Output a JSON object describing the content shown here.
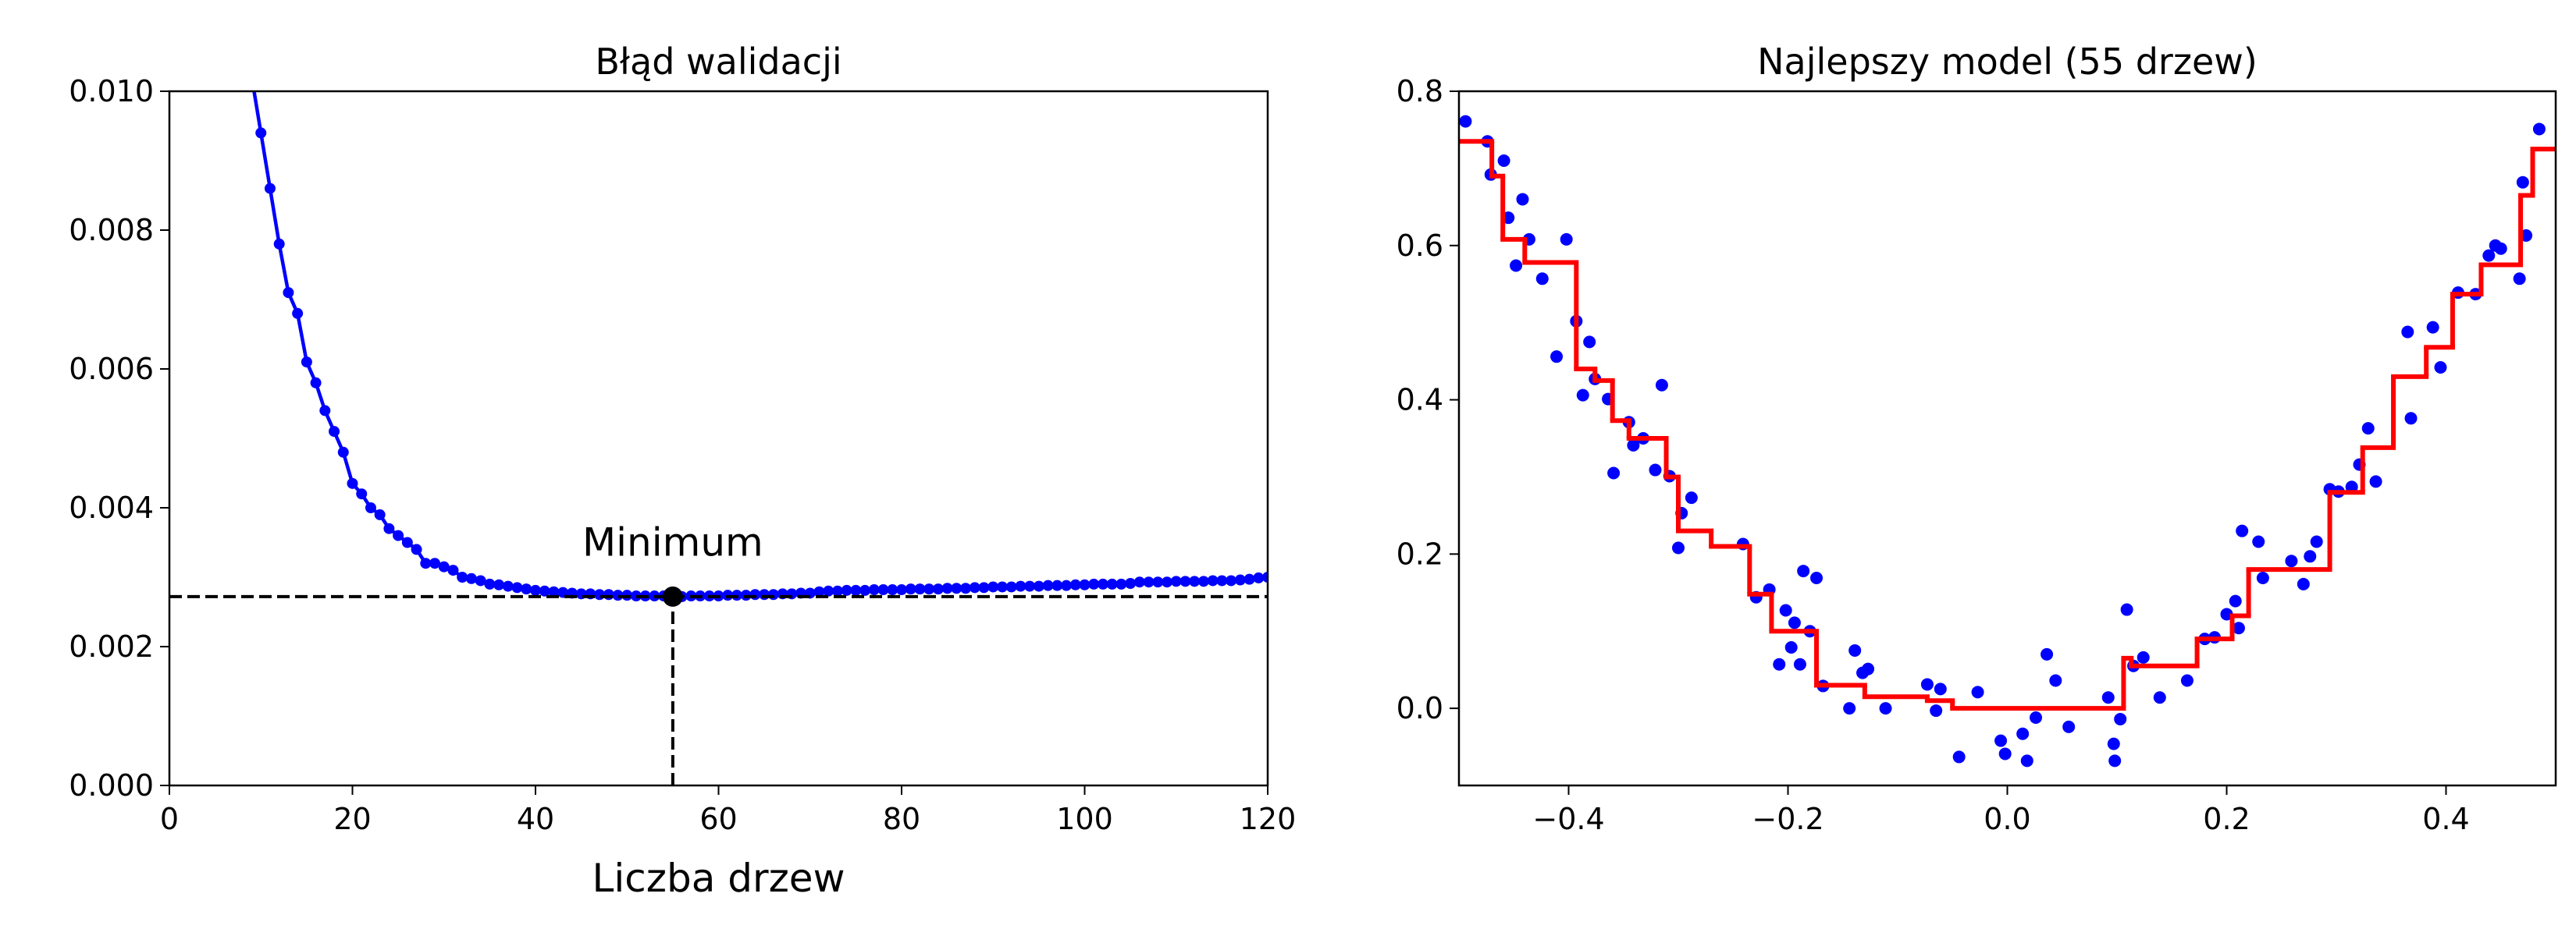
{
  "chart_data": [
    {
      "type": "line",
      "title": "Błąd walidacji",
      "x_label": "Liczba drzew",
      "color": "#0000ff",
      "x": [
        9,
        10,
        11,
        12,
        13,
        14,
        15,
        16,
        17,
        18,
        19,
        20,
        21,
        22,
        23,
        24,
        25,
        26,
        27,
        28,
        29,
        30,
        31,
        32,
        33,
        34,
        35,
        36,
        37,
        38,
        39,
        40,
        41,
        42,
        43,
        44,
        45,
        46,
        47,
        48,
        49,
        50,
        51,
        52,
        53,
        54,
        55,
        56,
        57,
        58,
        59,
        60,
        61,
        62,
        63,
        64,
        65,
        66,
        67,
        68,
        69,
        70,
        71,
        72,
        73,
        74,
        75,
        76,
        77,
        78,
        79,
        80,
        81,
        82,
        83,
        84,
        85,
        86,
        87,
        88,
        89,
        90,
        91,
        92,
        93,
        94,
        95,
        96,
        97,
        98,
        99,
        100,
        101,
        102,
        103,
        104,
        105,
        106,
        107,
        108,
        109,
        110,
        111,
        112,
        113,
        114,
        115,
        116,
        117,
        118,
        119,
        120
      ],
      "values": [
        0.0102,
        0.0094,
        0.0086,
        0.0078,
        0.0071,
        0.0068,
        0.0061,
        0.0058,
        0.0054,
        0.0051,
        0.0048,
        0.00435,
        0.0042,
        0.004,
        0.0039,
        0.0037,
        0.0036,
        0.0035,
        0.0034,
        0.0032,
        0.0032,
        0.00315,
        0.0031,
        0.003,
        0.00298,
        0.00295,
        0.0029,
        0.00289,
        0.00287,
        0.00285,
        0.00283,
        0.00281,
        0.0028,
        0.00279,
        0.00278,
        0.00277,
        0.00276,
        0.00276,
        0.00275,
        0.00275,
        0.00274,
        0.00274,
        0.00273,
        0.00273,
        0.00273,
        0.00273,
        0.00272,
        0.00272,
        0.00273,
        0.00273,
        0.00273,
        0.00273,
        0.00274,
        0.00274,
        0.00274,
        0.00275,
        0.00275,
        0.00275,
        0.00276,
        0.00276,
        0.00277,
        0.00277,
        0.00279,
        0.0028,
        0.0028,
        0.00281,
        0.00281,
        0.00281,
        0.00282,
        0.00282,
        0.00282,
        0.00282,
        0.00283,
        0.00283,
        0.00283,
        0.00283,
        0.00284,
        0.00284,
        0.00284,
        0.00285,
        0.00285,
        0.00286,
        0.00286,
        0.00286,
        0.00287,
        0.00287,
        0.00287,
        0.00288,
        0.00288,
        0.00288,
        0.00289,
        0.00289,
        0.0029,
        0.0029,
        0.0029,
        0.0029,
        0.00291,
        0.00293,
        0.00293,
        0.00293,
        0.00293,
        0.00294,
        0.00294,
        0.00294,
        0.00294,
        0.00295,
        0.00295,
        0.00295,
        0.00296,
        0.00297,
        0.00299,
        0.003
      ],
      "minimum": {
        "x": 55,
        "y": 0.00272,
        "color": "#000000"
      },
      "annotation": {
        "text": "Minimum",
        "x": 55,
        "y": 0.0035
      },
      "xlim": [
        0,
        120
      ],
      "ylim": [
        0,
        0.01
      ],
      "xticks": [
        0,
        20,
        40,
        60,
        80,
        100,
        120
      ],
      "yticks": [
        {
          "value": 0,
          "label": "0.000"
        },
        {
          "value": 0.002,
          "label": "0.002"
        },
        {
          "value": 0.004,
          "label": "0.004"
        },
        {
          "value": 0.006,
          "label": "0.006"
        },
        {
          "value": 0.008,
          "label": "0.008"
        },
        {
          "value": 0.01,
          "label": "0.010"
        }
      ],
      "grid": false
    },
    {
      "type": "scatter",
      "title": "Najlepszy model (55 drzew)",
      "points": {
        "color": "#0000ff",
        "x": [
          -0.494,
          -0.474,
          -0.471,
          -0.459,
          -0.455,
          -0.448,
          -0.442,
          -0.436,
          -0.424,
          -0.411,
          -0.402,
          -0.393,
          -0.387,
          -0.381,
          -0.376,
          -0.364,
          -0.359,
          -0.345,
          -0.341,
          -0.332,
          -0.321,
          -0.315,
          -0.308,
          -0.3,
          -0.297,
          -0.288,
          -0.241,
          -0.229,
          -0.217,
          -0.208,
          -0.202,
          -0.197,
          -0.194,
          -0.189,
          -0.186,
          -0.18,
          -0.174,
          -0.168,
          -0.144,
          -0.139,
          -0.132,
          -0.127,
          -0.111,
          -0.073,
          -0.065,
          -0.061,
          -0.044,
          -0.027,
          -0.006,
          -0.002,
          0.014,
          0.018,
          0.026,
          0.036,
          0.044,
          0.056,
          0.092,
          0.097,
          0.098,
          0.103,
          0.109,
          0.115,
          0.124,
          0.139,
          0.164,
          0.18,
          0.189,
          0.2,
          0.208,
          0.211,
          0.214,
          0.229,
          0.233,
          0.259,
          0.27,
          0.276,
          0.282,
          0.294,
          0.302,
          0.314,
          0.321,
          0.329,
          0.336,
          0.365,
          0.368,
          0.388,
          0.395,
          0.411,
          0.427,
          0.439,
          0.445,
          0.45,
          0.467,
          0.47,
          0.473,
          0.485
        ],
        "values": [
          0.761,
          0.735,
          0.692,
          0.71,
          0.636,
          0.574,
          0.66,
          0.608,
          0.557,
          0.456,
          0.608,
          0.502,
          0.406,
          0.475,
          0.427,
          0.401,
          0.305,
          0.371,
          0.341,
          0.35,
          0.309,
          0.419,
          0.301,
          0.208,
          0.253,
          0.273,
          0.213,
          0.144,
          0.154,
          0.057,
          0.127,
          0.079,
          0.111,
          0.057,
          0.178,
          0.1,
          0.169,
          0.029,
          0.0,
          0.075,
          0.046,
          0.051,
          0.0,
          0.031,
          -0.003,
          0.025,
          -0.063,
          0.021,
          -0.042,
          -0.059,
          -0.033,
          -0.068,
          -0.012,
          0.07,
          0.036,
          -0.024,
          0.014,
          -0.046,
          -0.068,
          -0.014,
          0.128,
          0.055,
          0.066,
          0.014,
          0.036,
          0.09,
          0.092,
          0.122,
          0.139,
          0.104,
          0.23,
          0.216,
          0.169,
          0.191,
          0.161,
          0.197,
          0.216,
          0.284,
          0.281,
          0.287,
          0.316,
          0.363,
          0.294,
          0.488,
          0.376,
          0.494,
          0.442,
          0.539,
          0.537,
          0.587,
          0.6,
          0.596,
          0.557,
          0.682,
          0.613,
          0.751
        ]
      },
      "step": {
        "color": "#ff0000",
        "edges": [
          -0.5,
          -0.47,
          -0.46,
          -0.44,
          -0.393,
          -0.376,
          -0.36,
          -0.345,
          -0.311,
          -0.3,
          -0.27,
          -0.235,
          -0.215,
          -0.174,
          -0.13,
          -0.073,
          -0.05,
          0.106,
          0.113,
          0.173,
          0.205,
          0.22,
          0.294,
          0.324,
          0.352,
          0.382,
          0.406,
          0.432,
          0.468,
          0.479,
          0.5
        ],
        "values": [
          0.735,
          0.69,
          0.608,
          0.578,
          0.44,
          0.425,
          0.373,
          0.35,
          0.3,
          0.23,
          0.21,
          0.148,
          0.1,
          0.03,
          0.015,
          0.01,
          0.0,
          0.065,
          0.055,
          0.09,
          0.12,
          0.18,
          0.28,
          0.338,
          0.43,
          0.468,
          0.537,
          0.575,
          0.665,
          0.725
        ]
      },
      "xlim": [
        -0.5,
        0.5
      ],
      "ylim": [
        -0.1,
        0.8
      ],
      "xticks": [
        {
          "value": -0.4,
          "label": "−0.4"
        },
        {
          "value": -0.2,
          "label": "−0.2"
        },
        {
          "value": 0,
          "label": "0.0"
        },
        0.2,
        0.4
      ],
      "yticks": [
        {
          "value": 0,
          "label": "0.0"
        },
        0.2,
        0.4,
        0.6,
        0.8
      ],
      "grid": false
    }
  ]
}
